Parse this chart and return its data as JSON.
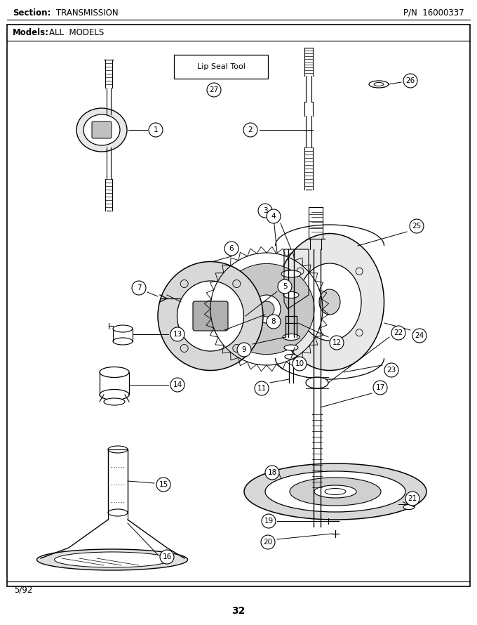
{
  "title_section": "Section:",
  "title_section_val": "TRANSMISSION",
  "title_pn": "P/N  16000337",
  "title_models": "Models:",
  "title_models_val": "ALL  MODELS",
  "page_num": "32",
  "date": "5/92",
  "bg_color": "#ffffff",
  "border_color": "#000000",
  "fig_w": 6.8,
  "fig_h": 8.9,
  "dpi": 100
}
